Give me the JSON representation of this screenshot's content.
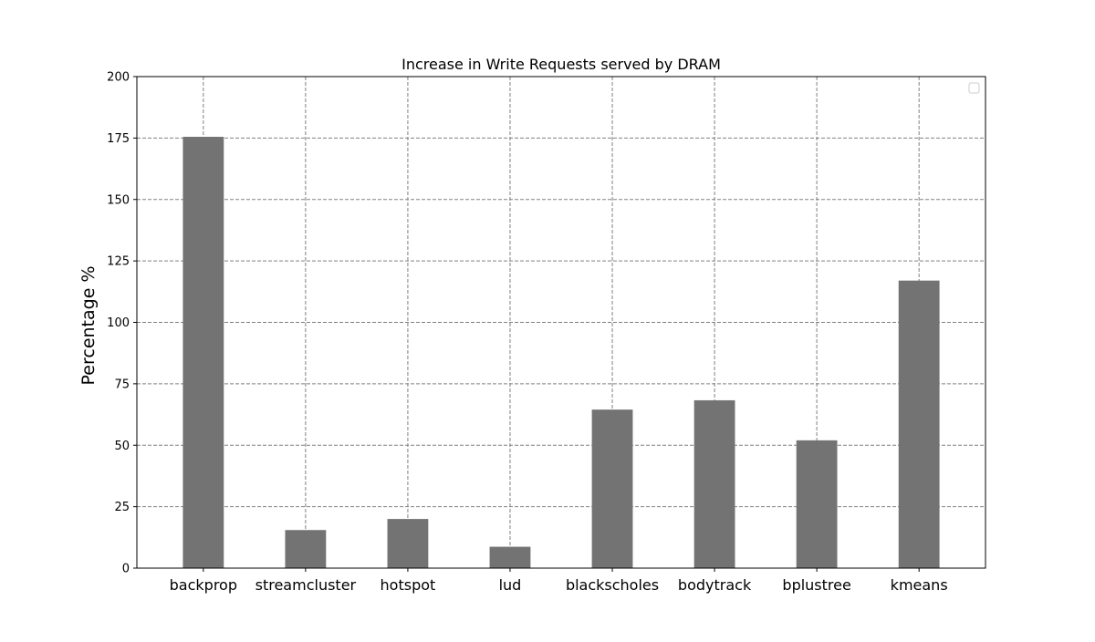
{
  "chart_data": {
    "type": "bar",
    "title": "Increase in Write Requests served by DRAM",
    "xlabel": "",
    "ylabel": "Percentage %",
    "categories": [
      "backprop",
      "streamcluster",
      "hotspot",
      "lud",
      "blackscholes",
      "bodytrack",
      "bplustree",
      "kmeans"
    ],
    "values": [
      175.5,
      15.5,
      20,
      8.7,
      64.5,
      68.3,
      52,
      117
    ],
    "ylim": [
      0,
      200
    ],
    "yticks": [
      0,
      25,
      50,
      75,
      100,
      125,
      150,
      175,
      200
    ],
    "grid": true,
    "legend": "top-right",
    "bar_color": "#737373",
    "grid_color": "#808080"
  }
}
